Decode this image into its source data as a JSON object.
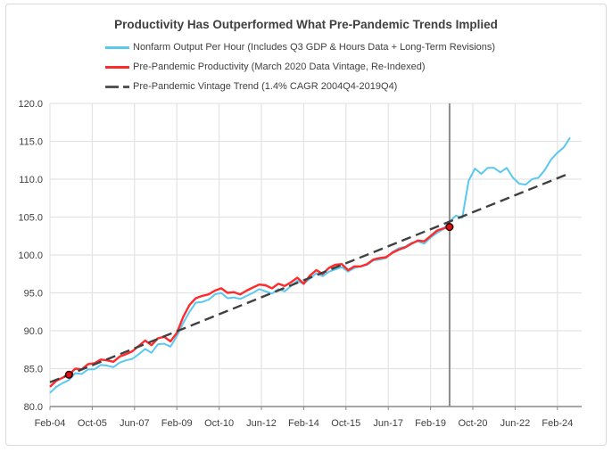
{
  "chart_data": {
    "type": "line",
    "title": "Productivity Has Outperformed What Pre-Pandemic Trends Implied",
    "xlabel": "",
    "ylabel": "",
    "ylim": [
      80,
      120
    ],
    "y_ticks": [
      "80.0",
      "85.0",
      "90.0",
      "95.0",
      "100.0",
      "105.0",
      "110.0",
      "115.0",
      "120.0"
    ],
    "x_ticks": [
      "Feb-04",
      "Oct-05",
      "Jun-07",
      "Feb-09",
      "Oct-10",
      "Jun-12",
      "Feb-14",
      "Oct-15",
      "Jun-17",
      "Feb-19",
      "Oct-20",
      "Jun-22",
      "Feb-24"
    ],
    "x_tick_months_since_feb04": [
      0,
      20,
      40,
      60,
      80,
      100,
      120,
      140,
      160,
      180,
      200,
      220,
      240
    ],
    "x_frequency": "quarterly, starting 2004Q1",
    "grid": true,
    "legend_position": "top",
    "vertical_marker": "2019Q4",
    "series": [
      {
        "name": "Nonfarm Output Per Hour (Includes Q3 GDP & Hours Data + Long-Term Revisions)",
        "color": "#5bc8f0",
        "style": "solid",
        "values": [
          81.8,
          82.6,
          83.1,
          83.5,
          84.4,
          84.3,
          84.9,
          84.9,
          85.5,
          85.4,
          85.2,
          85.8,
          86.1,
          86.3,
          86.9,
          87.6,
          87.1,
          88.2,
          88.3,
          87.9,
          89.3,
          91.0,
          92.5,
          93.7,
          93.8,
          94.1,
          94.8,
          95.0,
          94.3,
          94.4,
          94.2,
          94.6,
          95.0,
          95.5,
          95.2,
          94.9,
          95.5,
          95.2,
          95.9,
          96.6,
          96.2,
          96.9,
          97.6,
          97.2,
          97.8,
          98.1,
          98.4,
          97.8,
          98.3,
          98.5,
          98.7,
          99.3,
          99.4,
          99.6,
          100.4,
          100.9,
          101.1,
          101.6,
          101.8,
          101.5,
          102.3,
          102.9,
          103.4,
          104.4,
          105.2,
          104.9,
          109.8,
          111.4,
          110.7,
          111.5,
          111.5,
          110.9,
          111.5,
          110.2,
          109.4,
          109.3,
          110.0,
          110.2,
          111.2,
          112.6,
          113.5,
          114.2,
          115.5
        ]
      },
      {
        "name": "Pre-Pandemic Productivity (March 2020 Data Vintage, Re-Indexed)",
        "color": "#ff2a2a",
        "style": "solid",
        "values": [
          82.6,
          83.4,
          83.8,
          84.2,
          85.0,
          84.9,
          85.6,
          85.7,
          86.2,
          86.1,
          85.9,
          86.6,
          86.9,
          87.3,
          88.0,
          88.7,
          88.1,
          89.0,
          89.2,
          88.6,
          89.7,
          91.8,
          93.4,
          94.3,
          94.6,
          94.8,
          95.3,
          95.6,
          95.0,
          95.1,
          94.8,
          95.3,
          95.7,
          96.1,
          96.0,
          95.6,
          96.2,
          95.9,
          96.4,
          97.0,
          96.2,
          97.3,
          98.0,
          97.5,
          98.3,
          98.7,
          98.8,
          98.0,
          98.5,
          98.5,
          98.8,
          99.4,
          99.6,
          99.7,
          100.3,
          100.7,
          101.0,
          101.5,
          101.9,
          101.8,
          102.5,
          103.2,
          103.5,
          103.7
        ]
      },
      {
        "name": "Pre-Pandemic Vintage Trend (1.4% CAGR 2004Q4-2019Q4)",
        "color": "#404040",
        "style": "dashed",
        "start": {
          "quarter": "2004Q1",
          "value": 83.2
        },
        "end": {
          "quarter": "2024Q3",
          "value": 110.8
        }
      }
    ],
    "markers": [
      {
        "quarter": "2004Q4",
        "value": 84.2
      },
      {
        "quarter": "2019Q4",
        "value": 103.7
      }
    ]
  }
}
